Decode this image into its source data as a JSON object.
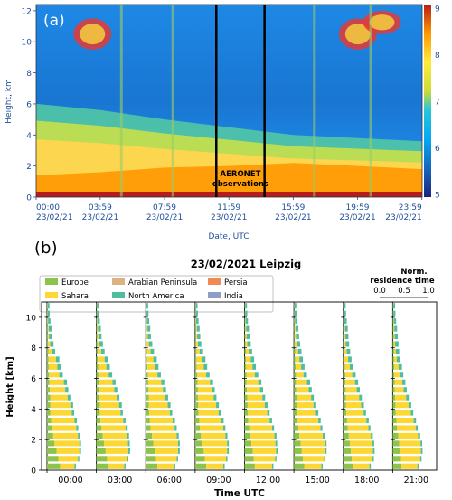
{
  "chart_data": [
    {
      "type": "heatmap",
      "panel_label": "(a)",
      "xlabel": "Date, UTC",
      "ylabel": "Height, km",
      "ylim": [
        0,
        12.4
      ],
      "y_ticks": [
        "0",
        "2",
        "4",
        "6",
        "8",
        "10",
        "12"
      ],
      "x_ticks": [
        {
          "time": "00:00",
          "date": "23/02/21"
        },
        {
          "time": "03:59",
          "date": "23/02/21"
        },
        {
          "time": "07:59",
          "date": "23/02/21"
        },
        {
          "time": "11:59",
          "date": "23/02/21"
        },
        {
          "time": "15:59",
          "date": "23/02/21"
        },
        {
          "time": "19:59",
          "date": "23/02/21"
        },
        {
          "time": "23:59",
          "date": "23/02/21"
        }
      ],
      "colorbar": {
        "min": 5,
        "max": 9,
        "ticks": [
          "5",
          "6",
          "7",
          "8",
          "9"
        ]
      },
      "annotation": {
        "line1": "AERONET",
        "line2": "observations",
        "window_hours": [
          11.2,
          14.2
        ]
      },
      "layers_hours_km": {
        "boundary_layer_top": [
          [
            0,
            1.4
          ],
          [
            4,
            1.6
          ],
          [
            8,
            1.9
          ],
          [
            12,
            2.0
          ],
          [
            16,
            2.2
          ],
          [
            20,
            2.0
          ],
          [
            24,
            1.8
          ]
        ],
        "dust_layer_top": [
          [
            0,
            6.0
          ],
          [
            4,
            5.6
          ],
          [
            8,
            5.0
          ],
          [
            12,
            4.5
          ],
          [
            16,
            4.0
          ],
          [
            20,
            3.8
          ],
          [
            24,
            3.6
          ]
        ],
        "cirrus_patches": [
          [
            3.5,
            9.5,
            11.5
          ],
          [
            20,
            9.5,
            11.5
          ],
          [
            21.5,
            10.5,
            12.0
          ]
        ]
      }
    },
    {
      "type": "bar",
      "panel_label": "(b)",
      "title": "23/02/2021 Leipzig",
      "xlabel": "Time UTC",
      "ylabel": "Height [km]",
      "ylim": [
        0,
        11
      ],
      "y_ticks": [
        "0",
        "2",
        "4",
        "6",
        "8",
        "10"
      ],
      "times": [
        "00:00",
        "03:00",
        "06:00",
        "09:00",
        "12:00",
        "15:00",
        "18:00",
        "21:00"
      ],
      "residence_axis": {
        "label_line1": "Norm.",
        "label_line2": "residence time",
        "ticks": [
          "0.0",
          "0.5",
          "1.0"
        ]
      },
      "series": [
        {
          "name": "Europe",
          "color": "#8cc34a"
        },
        {
          "name": "Sahara",
          "color": "#fdd835"
        },
        {
          "name": "Arabian Peninsula",
          "color": "#dcb183"
        },
        {
          "name": "North America",
          "color": "#4fbea0"
        },
        {
          "name": "Persia",
          "color": "#ef8a54"
        },
        {
          "name": "India",
          "color": "#8f9ec9"
        }
      ],
      "heights": [
        0.25,
        0.75,
        1.25,
        1.75,
        2.25,
        2.75,
        3.25,
        3.75,
        4.25,
        4.75,
        5.25,
        5.75,
        6.25,
        6.75,
        7.25,
        7.75,
        8.25,
        8.75,
        9.25,
        9.75,
        10.25,
        10.75
      ],
      "profiles": [
        {
          "time": "00:00",
          "europe": [
            0.38,
            0.33,
            0.28,
            0.22,
            0.18,
            0.15,
            0.12,
            0.1,
            0.1,
            0.1,
            0.08,
            0.07,
            0.06,
            0.05,
            0.04,
            0.04,
            0.03,
            0.03,
            0.03,
            0.02,
            0.02,
            0.02
          ],
          "sahara": [
            0.42,
            0.57,
            0.66,
            0.72,
            0.72,
            0.7,
            0.68,
            0.62,
            0.58,
            0.5,
            0.45,
            0.42,
            0.3,
            0.25,
            0.22,
            0.1,
            0.06,
            0.03,
            0.02,
            0.01,
            0.0,
            0.0
          ],
          "north_america": [
            0.04,
            0.04,
            0.05,
            0.05,
            0.06,
            0.06,
            0.07,
            0.07,
            0.08,
            0.08,
            0.09,
            0.09,
            0.1,
            0.1,
            0.1,
            0.1,
            0.1,
            0.09,
            0.08,
            0.07,
            0.06,
            0.05
          ]
        },
        {
          "time": "03:00",
          "europe": [
            0.36,
            0.31,
            0.27,
            0.22,
            0.18,
            0.15,
            0.12,
            0.1,
            0.1,
            0.09,
            0.08,
            0.07,
            0.06,
            0.05,
            0.04,
            0.04,
            0.03,
            0.03,
            0.03,
            0.02,
            0.02,
            0.02
          ],
          "sahara": [
            0.45,
            0.58,
            0.66,
            0.7,
            0.71,
            0.7,
            0.66,
            0.6,
            0.56,
            0.5,
            0.44,
            0.4,
            0.3,
            0.24,
            0.2,
            0.1,
            0.06,
            0.03,
            0.02,
            0.01,
            0.0,
            0.0
          ],
          "north_america": [
            0.04,
            0.04,
            0.05,
            0.05,
            0.06,
            0.06,
            0.07,
            0.07,
            0.08,
            0.08,
            0.09,
            0.09,
            0.1,
            0.1,
            0.1,
            0.1,
            0.1,
            0.09,
            0.08,
            0.07,
            0.06,
            0.05
          ]
        },
        {
          "time": "06:00",
          "europe": [
            0.34,
            0.3,
            0.26,
            0.22,
            0.18,
            0.14,
            0.12,
            0.1,
            0.09,
            0.09,
            0.08,
            0.07,
            0.06,
            0.05,
            0.04,
            0.04,
            0.03,
            0.03,
            0.03,
            0.02,
            0.02,
            0.02
          ],
          "sahara": [
            0.48,
            0.6,
            0.68,
            0.72,
            0.72,
            0.7,
            0.66,
            0.6,
            0.55,
            0.48,
            0.42,
            0.38,
            0.28,
            0.22,
            0.18,
            0.1,
            0.06,
            0.03,
            0.02,
            0.01,
            0.0,
            0.0
          ],
          "north_america": [
            0.04,
            0.04,
            0.05,
            0.05,
            0.06,
            0.06,
            0.07,
            0.07,
            0.08,
            0.08,
            0.09,
            0.09,
            0.1,
            0.1,
            0.1,
            0.1,
            0.1,
            0.09,
            0.08,
            0.07,
            0.06,
            0.05
          ]
        },
        {
          "time": "09:00",
          "europe": [
            0.32,
            0.28,
            0.25,
            0.21,
            0.17,
            0.14,
            0.12,
            0.1,
            0.09,
            0.08,
            0.08,
            0.07,
            0.06,
            0.05,
            0.04,
            0.04,
            0.03,
            0.03,
            0.03,
            0.02,
            0.02,
            0.02
          ],
          "sahara": [
            0.5,
            0.62,
            0.68,
            0.72,
            0.71,
            0.68,
            0.64,
            0.58,
            0.52,
            0.46,
            0.4,
            0.36,
            0.26,
            0.2,
            0.16,
            0.09,
            0.05,
            0.03,
            0.02,
            0.01,
            0.0,
            0.0
          ],
          "north_america": [
            0.04,
            0.04,
            0.05,
            0.05,
            0.06,
            0.06,
            0.07,
            0.07,
            0.08,
            0.08,
            0.09,
            0.09,
            0.1,
            0.1,
            0.1,
            0.1,
            0.1,
            0.09,
            0.08,
            0.07,
            0.06,
            0.05
          ]
        },
        {
          "time": "12:00",
          "europe": [
            0.3,
            0.27,
            0.24,
            0.2,
            0.17,
            0.14,
            0.11,
            0.1,
            0.09,
            0.08,
            0.07,
            0.06,
            0.06,
            0.05,
            0.04,
            0.04,
            0.03,
            0.03,
            0.03,
            0.02,
            0.02,
            0.02
          ],
          "sahara": [
            0.5,
            0.62,
            0.68,
            0.7,
            0.7,
            0.66,
            0.62,
            0.56,
            0.5,
            0.44,
            0.38,
            0.34,
            0.24,
            0.18,
            0.14,
            0.08,
            0.05,
            0.03,
            0.02,
            0.01,
            0.0,
            0.0
          ],
          "north_america": [
            0.04,
            0.04,
            0.05,
            0.05,
            0.06,
            0.06,
            0.07,
            0.07,
            0.08,
            0.08,
            0.09,
            0.09,
            0.1,
            0.1,
            0.1,
            0.1,
            0.1,
            0.09,
            0.08,
            0.07,
            0.06,
            0.05
          ]
        },
        {
          "time": "15:00",
          "europe": [
            0.3,
            0.26,
            0.23,
            0.2,
            0.16,
            0.13,
            0.11,
            0.1,
            0.09,
            0.08,
            0.07,
            0.06,
            0.06,
            0.05,
            0.04,
            0.04,
            0.03,
            0.03,
            0.03,
            0.02,
            0.02,
            0.02
          ],
          "sahara": [
            0.5,
            0.62,
            0.67,
            0.7,
            0.68,
            0.64,
            0.6,
            0.54,
            0.48,
            0.42,
            0.36,
            0.32,
            0.22,
            0.16,
            0.12,
            0.08,
            0.05,
            0.03,
            0.02,
            0.01,
            0.0,
            0.0
          ],
          "north_america": [
            0.04,
            0.04,
            0.05,
            0.05,
            0.06,
            0.06,
            0.07,
            0.07,
            0.08,
            0.08,
            0.09,
            0.09,
            0.1,
            0.1,
            0.1,
            0.1,
            0.1,
            0.09,
            0.08,
            0.07,
            0.06,
            0.05
          ]
        },
        {
          "time": "18:00",
          "europe": [
            0.28,
            0.25,
            0.22,
            0.19,
            0.16,
            0.13,
            0.11,
            0.09,
            0.08,
            0.08,
            0.07,
            0.06,
            0.06,
            0.05,
            0.04,
            0.04,
            0.03,
            0.03,
            0.03,
            0.02,
            0.02,
            0.02
          ],
          "sahara": [
            0.48,
            0.6,
            0.64,
            0.66,
            0.64,
            0.6,
            0.56,
            0.5,
            0.44,
            0.38,
            0.32,
            0.28,
            0.2,
            0.14,
            0.1,
            0.06,
            0.04,
            0.03,
            0.02,
            0.01,
            0.0,
            0.0
          ],
          "north_america": [
            0.04,
            0.04,
            0.05,
            0.05,
            0.06,
            0.06,
            0.07,
            0.07,
            0.08,
            0.08,
            0.09,
            0.09,
            0.1,
            0.1,
            0.1,
            0.1,
            0.1,
            0.09,
            0.08,
            0.07,
            0.06,
            0.05
          ]
        },
        {
          "time": "21:00",
          "europe": [
            0.26,
            0.24,
            0.22,
            0.19,
            0.16,
            0.13,
            0.11,
            0.09,
            0.08,
            0.07,
            0.06,
            0.06,
            0.05,
            0.05,
            0.04,
            0.04,
            0.03,
            0.03,
            0.03,
            0.02,
            0.02,
            0.02
          ],
          "sahara": [
            0.46,
            0.56,
            0.6,
            0.62,
            0.58,
            0.54,
            0.5,
            0.44,
            0.38,
            0.32,
            0.26,
            0.22,
            0.16,
            0.12,
            0.08,
            0.05,
            0.04,
            0.03,
            0.02,
            0.01,
            0.0,
            0.0
          ],
          "north_america": [
            0.04,
            0.04,
            0.05,
            0.05,
            0.06,
            0.06,
            0.07,
            0.07,
            0.08,
            0.08,
            0.09,
            0.09,
            0.1,
            0.1,
            0.1,
            0.1,
            0.1,
            0.09,
            0.08,
            0.07,
            0.06,
            0.05
          ]
        }
      ]
    }
  ]
}
